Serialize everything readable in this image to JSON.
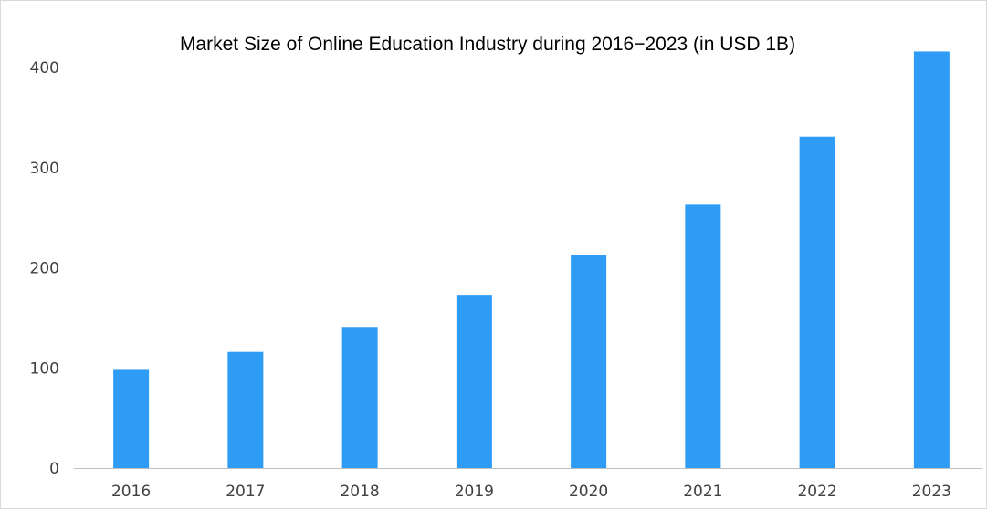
{
  "chart_data": {
    "type": "bar",
    "title": "Market Size of Online Education Industry during 2016−2023 (in USD 1B)",
    "categories": [
      "2016",
      "2017",
      "2018",
      "2019",
      "2020",
      "2021",
      "2022",
      "2023"
    ],
    "values": [
      98,
      116,
      141,
      173,
      213,
      263,
      331,
      416
    ],
    "xlabel": "",
    "ylabel": "",
    "ylim": [
      0,
      400
    ],
    "yticks": [
      "0",
      "100",
      "200",
      "300",
      "400"
    ],
    "grid": false,
    "legend": "none",
    "bar_color": "#2E9BF5",
    "axis_color": "#BFBFBF"
  }
}
